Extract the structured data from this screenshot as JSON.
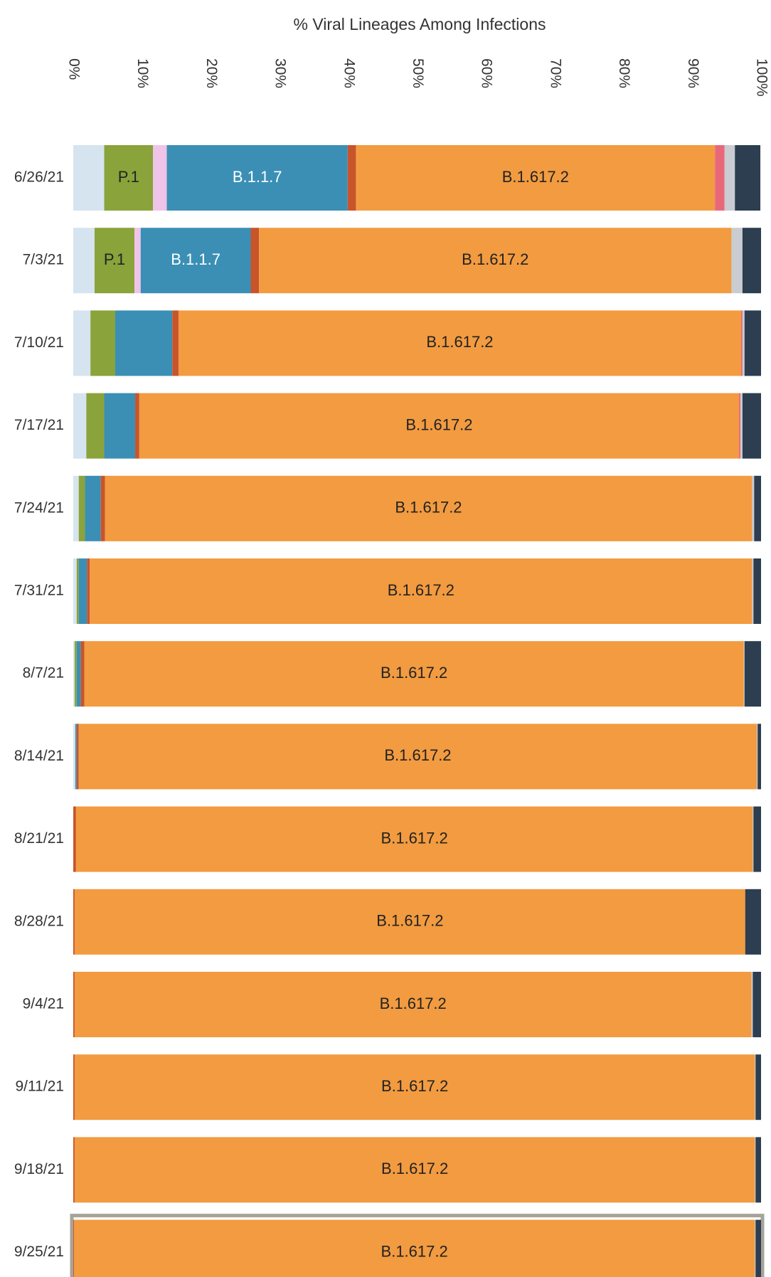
{
  "chart_data": {
    "type": "stacked_bar_horizontal",
    "title": "% Viral Lineages Among Infections",
    "categories": [
      "6/26/21",
      "7/3/21",
      "7/10/21",
      "7/17/21",
      "7/24/21",
      "7/31/21",
      "8/7/21",
      "8/14/21",
      "8/21/21",
      "8/28/21",
      "9/4/21",
      "9/11/21",
      "9/18/21",
      "9/25/21"
    ],
    "xlim": [
      0,
      100
    ],
    "xticks": [
      {
        "value": 0,
        "label": "0%"
      },
      {
        "value": 10,
        "label": "10%"
      },
      {
        "value": 20,
        "label": "20%"
      },
      {
        "value": 30,
        "label": "30%"
      },
      {
        "value": 40,
        "label": "40%"
      },
      {
        "value": 50,
        "label": "50%"
      },
      {
        "value": 60,
        "label": "60%"
      },
      {
        "value": 70,
        "label": "70%"
      },
      {
        "value": 80,
        "label": "80%"
      },
      {
        "value": 90,
        "label": "90%"
      },
      {
        "value": 100,
        "label": "100%"
      }
    ],
    "series": [
      {
        "color": "#d6e4f0",
        "values": [
          4.5,
          3.1,
          2.5,
          1.9,
          0.8,
          0.5,
          0.2,
          0.3,
          0,
          0,
          0,
          0,
          0,
          0
        ]
      },
      {
        "name": "P.1",
        "color": "#8aa33a",
        "label_color": "#222",
        "labeled": [
          true,
          true,
          false,
          false,
          false,
          false,
          false,
          false,
          false,
          false,
          false,
          false,
          false,
          false
        ],
        "values": [
          7.1,
          5.8,
          3.6,
          2.6,
          0.9,
          0.3,
          0.3,
          0,
          0,
          0,
          0,
          0,
          0,
          0
        ]
      },
      {
        "color": "#f0c4e8",
        "values": [
          2.0,
          0.9,
          0,
          0,
          0,
          0,
          0,
          0,
          0,
          0,
          0,
          0,
          0,
          0
        ]
      },
      {
        "name": "B.1.1.7",
        "color": "#3b8fb5",
        "label_color": "#fff",
        "labeled": [
          true,
          true,
          false,
          false,
          false,
          false,
          false,
          false,
          false,
          false,
          false,
          false,
          false,
          false
        ],
        "values": [
          26.3,
          16.0,
          8.3,
          4.5,
          2.3,
          1.2,
          0.6,
          0.2,
          0,
          0,
          0,
          0,
          0,
          0
        ]
      },
      {
        "color": "#c8542b",
        "values": [
          1.2,
          1.2,
          0.9,
          0.6,
          0.6,
          0.4,
          0.5,
          0.3,
          0.4,
          0.2,
          0.2,
          0.2,
          0.2,
          0.1
        ]
      },
      {
        "name": "B.1.617.2",
        "color": "#f29b40",
        "label_color": "#222",
        "labeled": [
          true,
          true,
          true,
          true,
          true,
          true,
          true,
          true,
          true,
          true,
          true,
          true,
          true,
          true
        ],
        "values": [
          52.2,
          68.7,
          81.8,
          87.2,
          94.1,
          96.3,
          95.9,
          98.6,
          98.4,
          97.5,
          98.4,
          98.9,
          98.9,
          99.0
        ]
      },
      {
        "color": "#e8687a",
        "values": [
          1.4,
          0,
          0.2,
          0.2,
          0,
          0,
          0,
          0,
          0,
          0,
          0,
          0,
          0,
          0
        ]
      },
      {
        "color": "#c9ccd1",
        "values": [
          1.5,
          1.6,
          0.3,
          0.3,
          0.3,
          0.2,
          0.1,
          0.1,
          0.1,
          0,
          0.2,
          0.1,
          0.1,
          0.1
        ]
      },
      {
        "color": "#2c3e50",
        "values": [
          3.7,
          2.7,
          2.4,
          2.7,
          1.0,
          1.1,
          2.4,
          0.5,
          1.1,
          2.3,
          1.2,
          0.8,
          0.8,
          0.8
        ]
      }
    ]
  }
}
